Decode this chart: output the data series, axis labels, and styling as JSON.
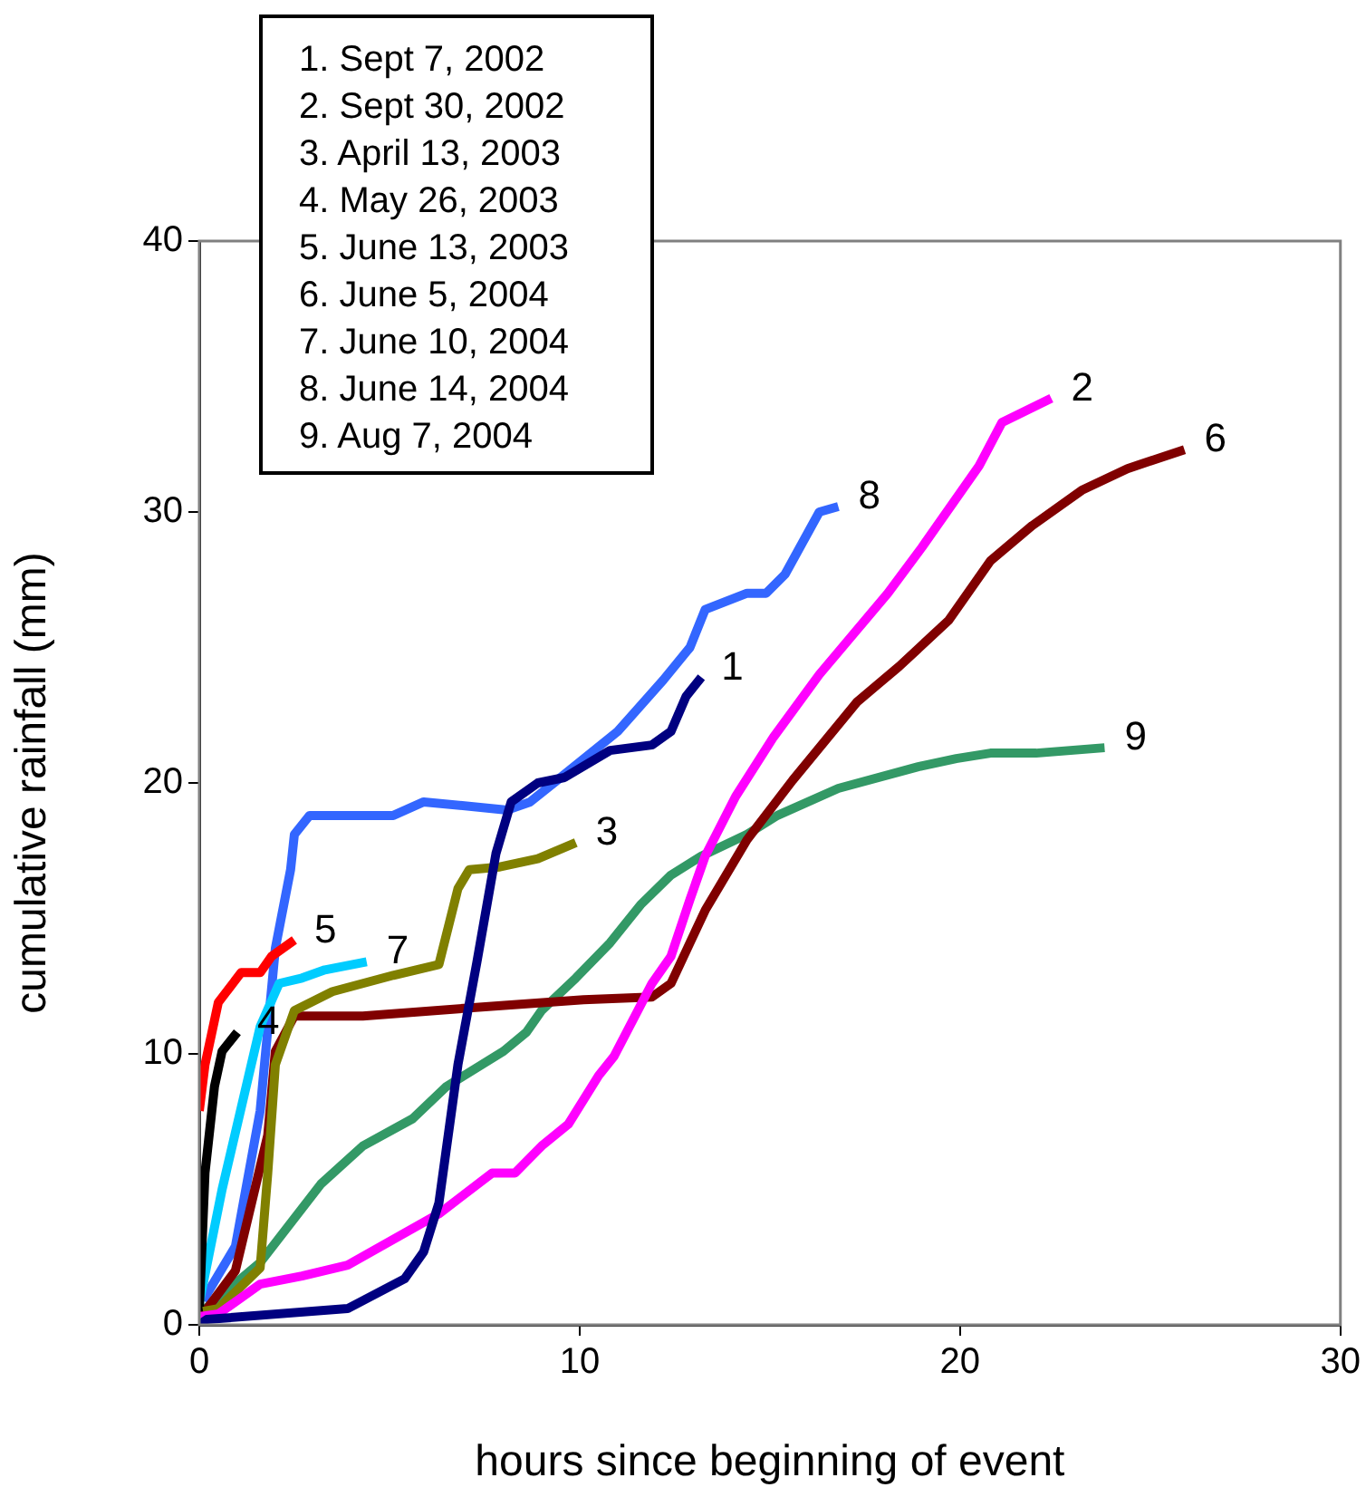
{
  "chart_data": {
    "type": "line",
    "xlabel": "hours since beginning of event",
    "ylabel": "cumulative rainfall (mm)",
    "xlim": [
      0,
      30
    ],
    "xticks": [
      0,
      10,
      20,
      30
    ],
    "ylim": [
      0,
      40
    ],
    "yticks": [
      0,
      10,
      20,
      30,
      40
    ],
    "grid": false,
    "legend": false,
    "marker": "none",
    "line_style": "solid",
    "annotations": [
      "1. Sept 7, 2002",
      "2. Sept 30, 2002",
      "3. April 13, 2003",
      "4. May 26, 2003",
      "5. June 13, 2003",
      "6. June 5, 2004",
      "7. June 10, 2004",
      "8. June 14, 2004",
      "9. Aug 7, 2004"
    ],
    "series": [
      {
        "name": "1",
        "color": "#000080",
        "x": [
          0,
          0.2,
          3.9,
          5.4,
          5.9,
          6.3,
          6.8,
          7.3,
          7.8,
          8.2,
          8.9,
          9.6,
          10.8,
          11.9,
          12.4,
          12.8,
          13.2
        ],
        "values": [
          0,
          0.2,
          0.6,
          1.7,
          2.7,
          4.5,
          9.6,
          13.4,
          17.4,
          19.3,
          20,
          20.2,
          21.2,
          21.4,
          21.9,
          23.2,
          23.9
        ]
      },
      {
        "name": "2",
        "color": "#ff00ff",
        "x": [
          0,
          0.5,
          1.6,
          2.7,
          3.9,
          6.3,
          7.7,
          8.3,
          9,
          9.7,
          10.5,
          10.9,
          11.9,
          12.4,
          12.9,
          13.3,
          14.1,
          15.1,
          16.3,
          18.1,
          19,
          20.5,
          21.1,
          22.4
        ],
        "values": [
          0.3,
          0.4,
          1.5,
          1.8,
          2.2,
          4.1,
          5.6,
          5.6,
          6.6,
          7.4,
          9.2,
          9.9,
          12.6,
          13.6,
          15.7,
          17.3,
          19.5,
          21.7,
          24,
          27,
          28.7,
          31.7,
          33.3,
          34.2
        ]
      },
      {
        "name": "3",
        "color": "#808000",
        "x": [
          0.1,
          0.5,
          1.6,
          1.8,
          2,
          2.5,
          3.5,
          5.1,
          6.3,
          6.8,
          7.1,
          7.9,
          8.9,
          9.9
        ],
        "values": [
          0.5,
          0.6,
          2.1,
          5.6,
          9.6,
          11.6,
          12.3,
          12.9,
          13.3,
          16.1,
          16.8,
          16.9,
          17.2,
          17.8
        ]
      },
      {
        "name": "4",
        "color": "#000000",
        "x": [
          0,
          0.15,
          0.4,
          0.6,
          1
        ],
        "values": [
          0.5,
          5.6,
          8.8,
          10.1,
          10.8
        ]
      },
      {
        "name": "5",
        "color": "#ff0000",
        "x": [
          0,
          0.15,
          0.5,
          1.1,
          1.6,
          1.9,
          2.5
        ],
        "values": [
          7.9,
          9.6,
          11.9,
          13,
          13,
          13.6,
          14.2
        ]
      },
      {
        "name": "6",
        "color": "#800000",
        "x": [
          0,
          0.95,
          1.8,
          2,
          2.5,
          4.3,
          8.1,
          10.1,
          11.9,
          12.4,
          13.3,
          14.4,
          15.6,
          17.3,
          18.4,
          19.7,
          20.8,
          21.9,
          23.2,
          24.4,
          25.9
        ],
        "values": [
          0.2,
          2,
          7,
          10.1,
          11.4,
          11.4,
          11.8,
          12,
          12.1,
          12.6,
          15.3,
          17.9,
          20.1,
          23,
          24.3,
          26,
          28.2,
          29.5,
          30.8,
          31.6,
          32.3
        ]
      },
      {
        "name": "7",
        "color": "#00ccff",
        "x": [
          0,
          0.6,
          1.3,
          1.6,
          2.1,
          2.7,
          3.3,
          4.4
        ],
        "values": [
          0.8,
          5,
          9.2,
          11,
          12.6,
          12.8,
          13.1,
          13.4
        ]
      },
      {
        "name": "8",
        "color": "#3366ff",
        "x": [
          0.1,
          0.95,
          1.6,
          2,
          2.4,
          2.5,
          2.9,
          5.1,
          5.9,
          8.1,
          8.7,
          9.5,
          11,
          12.2,
          12.9,
          13.3,
          14.4,
          14.9,
          15.4,
          16.3,
          16.8
        ],
        "values": [
          0.9,
          2.9,
          7.9,
          13.9,
          16.8,
          18.1,
          18.8,
          18.8,
          19.3,
          19,
          19.3,
          20.2,
          21.9,
          23.8,
          25,
          26.4,
          27,
          27,
          27.7,
          30,
          30.2
        ]
      },
      {
        "name": "9",
        "color": "#339966",
        "x": [
          0,
          1.6,
          3.2,
          4.3,
          5.6,
          6.5,
          8,
          8.6,
          9,
          9.9,
          10.8,
          11.6,
          12.4,
          13.2,
          14.4,
          15.2,
          16.8,
          18.9,
          19.9,
          20.8,
          22,
          23.8
        ],
        "values": [
          0.4,
          2.3,
          5.2,
          6.6,
          7.6,
          8.8,
          10.1,
          10.8,
          11.6,
          12.8,
          14.1,
          15.5,
          16.6,
          17.3,
          18.1,
          18.8,
          19.8,
          20.6,
          20.9,
          21.1,
          21.1,
          21.3
        ]
      }
    ]
  }
}
